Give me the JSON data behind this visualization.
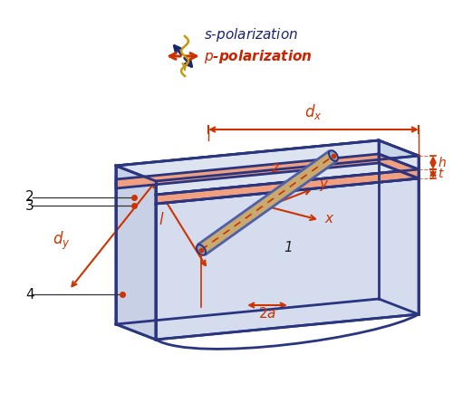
{
  "bg_color": "#ffffff",
  "dark_blue": "#2a3580",
  "red_orange": "#cc3300",
  "salmon": "#f0a080",
  "light_blue_top": "#dde4f0",
  "light_blue_side_right": "#c8d4e8",
  "light_blue_front": "#d5dced",
  "light_blue_back": "#c8d0e5",
  "light_blue_sub1": "#c8d0e5",
  "light_blue_sub2": "#bbc4da",
  "light_blue_sub3": "#b0bcce",
  "gold": "#c8960a",
  "navy": "#1a2570",
  "s_pol_color": "#1a2570",
  "p_pol_color": "#cc2200",
  "tube_outer": "#7080b8",
  "tube_inner": "#c4a868"
}
